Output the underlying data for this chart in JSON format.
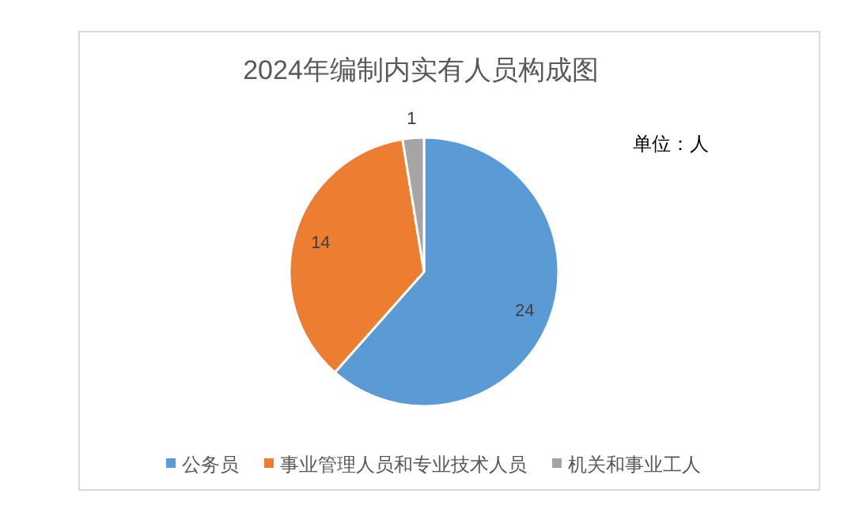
{
  "chart_data": {
    "type": "pie",
    "title": "2024年编制内实有人员构成图",
    "annotations": [
      "单位：人"
    ],
    "categories": [
      "公务员",
      "事业管理人员和专业技术人员",
      "机关和事业工人"
    ],
    "values": [
      24,
      14,
      1
    ],
    "colors": [
      "#5b9bd5",
      "#ed7d31",
      "#a5a5a5"
    ],
    "data_labels": true,
    "legend": "bottom"
  }
}
